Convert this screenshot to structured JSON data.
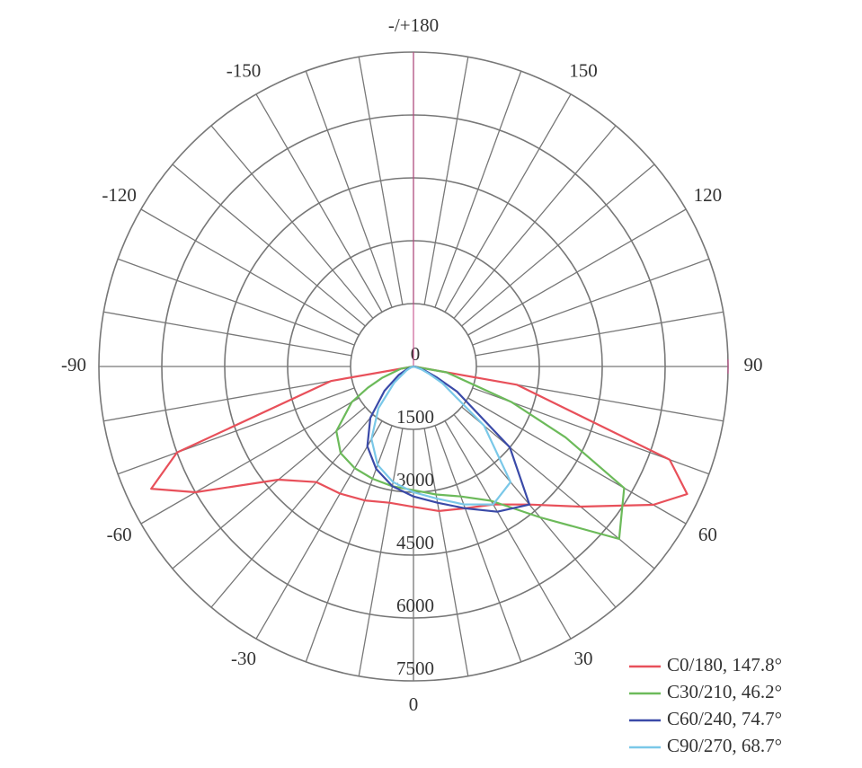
{
  "chart_data": {
    "type": "polar",
    "x": [
      -90,
      -80,
      -70,
      -65,
      -60,
      -50,
      -40,
      -30,
      -20,
      -10,
      0,
      10,
      20,
      30,
      40,
      50,
      60,
      65,
      70,
      80,
      90
    ],
    "series": [
      {
        "name": "C0/180, 147.8°",
        "color": "#e8505a",
        "values": [
          0,
          2000,
          6000,
          6900,
          6000,
          4200,
          3600,
          3500,
          3400,
          3300,
          3350,
          3500,
          3600,
          3800,
          4300,
          5200,
          6600,
          7200,
          6500,
          2500,
          0
        ]
      },
      {
        "name": "C30/210, 46.2°",
        "color": "#6cba5a",
        "values": [
          0,
          300,
          800,
          1200,
          1700,
          2400,
          2700,
          2800,
          2850,
          2900,
          2950,
          3100,
          3300,
          3700,
          4700,
          6400,
          5800,
          4000,
          2500,
          800,
          0
        ]
      },
      {
        "name": "C60/240, 74.7°",
        "color": "#3a4aa8",
        "values": [
          0,
          0,
          100,
          200,
          400,
          900,
          1600,
          2200,
          2600,
          2900,
          3100,
          3300,
          3600,
          4000,
          4300,
          3000,
          1200,
          600,
          300,
          50,
          0
        ]
      },
      {
        "name": "C90/270, 68.7°",
        "color": "#7ac8e8",
        "values": [
          0,
          0,
          50,
          100,
          200,
          600,
          1300,
          2000,
          2500,
          2800,
          3000,
          3200,
          3500,
          3800,
          3600,
          2200,
          800,
          400,
          200,
          0,
          0
        ]
      }
    ],
    "rlim": [
      0,
      7500
    ],
    "rticks": [
      0,
      1500,
      3000,
      4500,
      6000,
      7500
    ],
    "xticks": [
      0,
      30,
      60,
      90,
      120,
      150,
      {
        "value": 180,
        "label": "-/+180"
      },
      -150,
      -120,
      -90,
      -60,
      -30
    ],
    "legend": "lower right"
  }
}
